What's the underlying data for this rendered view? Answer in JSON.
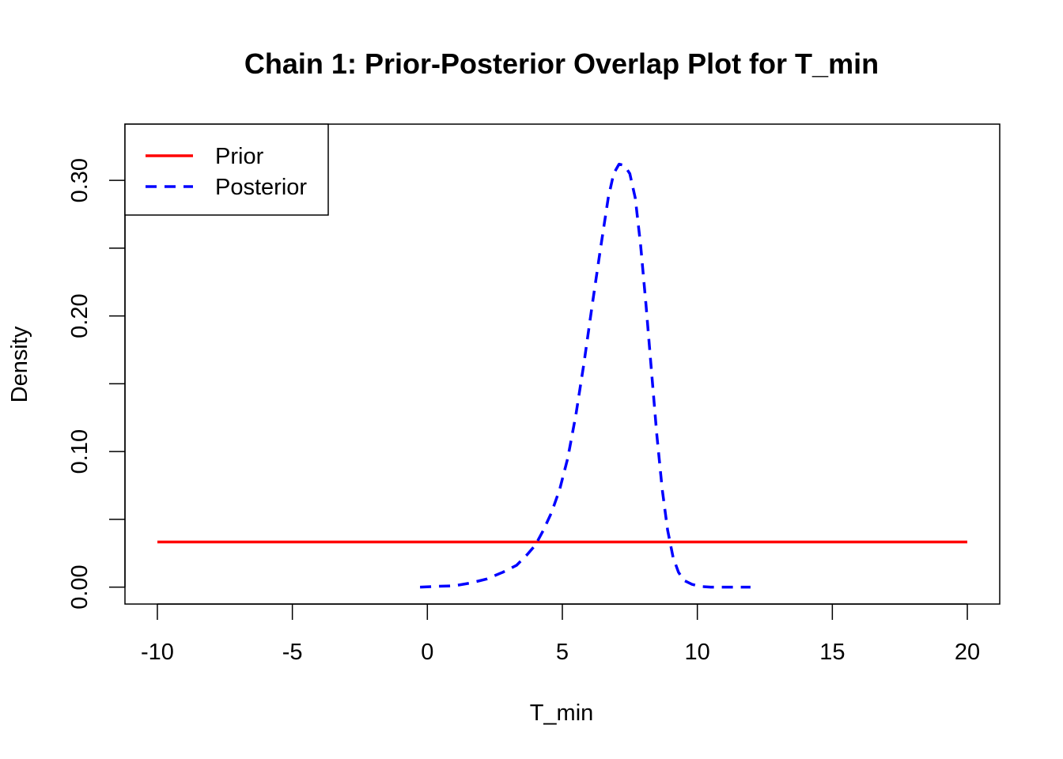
{
  "chart_data": {
    "type": "line",
    "title": "Chain 1: Prior-Posterior Overlap Plot for T_min",
    "xlabel": "T_min",
    "ylabel": "Density",
    "xlim": [
      -11.2,
      21.2
    ],
    "ylim": [
      -0.0125,
      0.3415
    ],
    "x_ticks": [
      -10,
      -5,
      0,
      5,
      10,
      15,
      20
    ],
    "x_tick_labels": [
      "-10",
      "-5",
      "0",
      "5",
      "10",
      "15",
      "20"
    ],
    "y_ticks": [
      0.0,
      0.05,
      0.1,
      0.15,
      0.2,
      0.25,
      0.3
    ],
    "y_tick_labels": [
      "0.00",
      "",
      "0.10",
      "",
      "0.20",
      "",
      "0.30"
    ],
    "grid": false,
    "legend_position": "top-left",
    "series": [
      {
        "name": "Prior",
        "color": "#ff0000",
        "line_style": "solid",
        "x": [
          -10,
          20
        ],
        "y": [
          0.0333,
          0.0333
        ]
      },
      {
        "name": "Posterior",
        "color": "#0000ff",
        "line_style": "dashed",
        "x": [
          -0.27,
          0.3,
          1.0,
          1.6,
          2.2,
          2.8,
          3.3,
          3.7,
          4.0,
          4.3,
          4.6,
          4.9,
          5.2,
          5.5,
          5.8,
          6.1,
          6.4,
          6.7,
          6.9,
          7.1,
          7.3,
          7.5,
          7.7,
          7.9,
          8.1,
          8.3,
          8.5,
          8.7,
          8.9,
          9.1,
          9.3,
          9.5,
          9.8,
          10.1,
          10.5,
          11.0,
          11.5,
          11.97
        ],
        "y": [
          0.0,
          0.0005,
          0.001,
          0.003,
          0.006,
          0.011,
          0.016,
          0.024,
          0.031,
          0.042,
          0.055,
          0.072,
          0.095,
          0.127,
          0.165,
          0.207,
          0.248,
          0.287,
          0.305,
          0.312,
          0.311,
          0.305,
          0.287,
          0.252,
          0.208,
          0.16,
          0.112,
          0.072,
          0.042,
          0.022,
          0.011,
          0.005,
          0.002,
          0.0005,
          0.0,
          0.0,
          0.0,
          0.0
        ]
      }
    ]
  }
}
